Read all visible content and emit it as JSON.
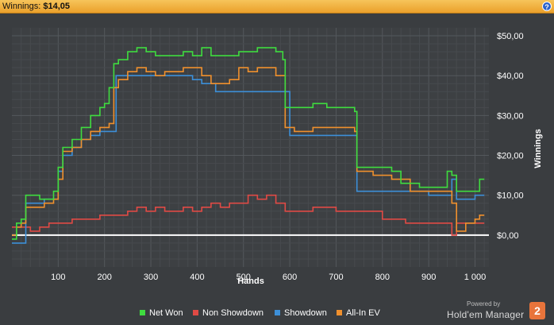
{
  "header": {
    "label": "Winnings:",
    "value": "$14,05",
    "help_icon": "?"
  },
  "colors": {
    "net_won": "#3fdc3f",
    "non_showdown": "#e04a45",
    "showdown": "#3d8fd8",
    "all_in_ev": "#f0902d",
    "zero_line": "#ffffff",
    "brand": "#e8743b"
  },
  "chart_data": {
    "type": "line",
    "xlabel": "Hands",
    "ylabel": "Winnings",
    "xlim": [
      0,
      1030
    ],
    "ylim": [
      -8,
      52
    ],
    "x_ticks": [
      100,
      200,
      300,
      400,
      500,
      600,
      700,
      800,
      900,
      1000
    ],
    "x_tick_labels": [
      "100",
      "200",
      "300",
      "400",
      "500",
      "600",
      "700",
      "800",
      "900",
      "1 000"
    ],
    "y_ticks": [
      0,
      10,
      20,
      30,
      40,
      50
    ],
    "y_tick_labels": [
      "$0,00",
      "$10,00",
      "$20,00",
      "$30,00",
      "$40,00",
      "$50,00"
    ],
    "grid": true,
    "legend_position": "bottom",
    "series": [
      {
        "name": "Net Won",
        "x": [
          0,
          10,
          20,
          30,
          50,
          60,
          90,
          100,
          110,
          130,
          150,
          170,
          190,
          200,
          210,
          220,
          230,
          250,
          270,
          290,
          310,
          330,
          350,
          370,
          390,
          410,
          430,
          450,
          470,
          490,
          510,
          530,
          550,
          570,
          585,
          590,
          620,
          650,
          680,
          710,
          740,
          745,
          780,
          820,
          840,
          860,
          880,
          900,
          930,
          940,
          950,
          960,
          980,
          1000,
          1010,
          1020
        ],
        "values": [
          -1,
          3,
          4,
          10,
          10,
          9,
          11,
          17,
          22,
          24,
          27,
          30,
          32,
          33,
          37,
          43,
          44,
          46,
          47,
          46,
          45,
          45,
          45,
          46,
          45,
          47,
          45,
          45,
          45,
          46,
          46,
          47,
          47,
          46,
          44,
          32,
          32,
          33,
          32,
          32,
          31,
          17,
          17,
          16,
          13,
          13,
          12,
          12,
          12,
          16,
          15,
          11,
          11,
          11,
          14,
          14
        ]
      },
      {
        "name": "Non Showdown",
        "x": [
          0,
          20,
          40,
          60,
          80,
          100,
          130,
          160,
          190,
          210,
          230,
          250,
          270,
          290,
          310,
          330,
          350,
          370,
          390,
          410,
          430,
          450,
          470,
          490,
          510,
          530,
          550,
          570,
          590,
          610,
          650,
          700,
          750,
          800,
          850,
          900,
          940,
          950,
          960,
          980,
          1000,
          1020
        ],
        "values": [
          2,
          2,
          1,
          2,
          3,
          3,
          4,
          4,
          5,
          5,
          5,
          6,
          7,
          6,
          7,
          6,
          6,
          7,
          6,
          7,
          8,
          7,
          8,
          8,
          10,
          9,
          10,
          8,
          6,
          6,
          7,
          6,
          6,
          4,
          3,
          3,
          3,
          0,
          3,
          3,
          3,
          3
        ]
      },
      {
        "name": "Showdown",
        "x": [
          0,
          5,
          10,
          30,
          60,
          70,
          80,
          100,
          110,
          130,
          150,
          170,
          190,
          210,
          225,
          250,
          300,
          350,
          390,
          410,
          440,
          470,
          500,
          550,
          590,
          600,
          650,
          700,
          740,
          745,
          800,
          850,
          900,
          940,
          950,
          960,
          980,
          1000,
          1020
        ],
        "values": [
          -2,
          -2,
          -2,
          8,
          8,
          9,
          9,
          16,
          20,
          22,
          24,
          25,
          26,
          26,
          40,
          40,
          40,
          40,
          39,
          38,
          36,
          36,
          36,
          36,
          36,
          25,
          25,
          25,
          25,
          11,
          11,
          11,
          10,
          10,
          14,
          9,
          9,
          10,
          10
        ]
      },
      {
        "name": "All-In EV",
        "x": [
          0,
          10,
          20,
          30,
          50,
          70,
          90,
          100,
          110,
          130,
          150,
          170,
          190,
          210,
          220,
          230,
          250,
          270,
          290,
          310,
          330,
          350,
          370,
          390,
          410,
          430,
          450,
          470,
          490,
          510,
          530,
          550,
          570,
          590,
          610,
          650,
          700,
          740,
          745,
          780,
          820,
          860,
          900,
          940,
          950,
          960,
          980,
          1000,
          1010,
          1020
        ],
        "values": [
          0,
          2,
          3,
          7,
          7,
          8,
          9,
          14,
          21,
          22,
          24,
          26,
          27,
          28,
          37,
          39,
          41,
          42,
          41,
          40,
          41,
          41,
          42,
          42,
          40,
          38,
          38,
          39,
          42,
          41,
          42,
          42,
          40,
          27,
          26,
          27,
          27,
          26,
          16,
          15,
          14,
          11,
          11,
          11,
          8,
          1,
          3,
          4,
          5,
          5
        ]
      }
    ]
  },
  "legend": [
    {
      "label": "Net Won"
    },
    {
      "label": "Non Showdown"
    },
    {
      "label": "Showdown"
    },
    {
      "label": "All-In EV"
    }
  ],
  "branding": {
    "powered_by": "Powered by",
    "name": "Hold'em Manager",
    "badge": "2"
  }
}
